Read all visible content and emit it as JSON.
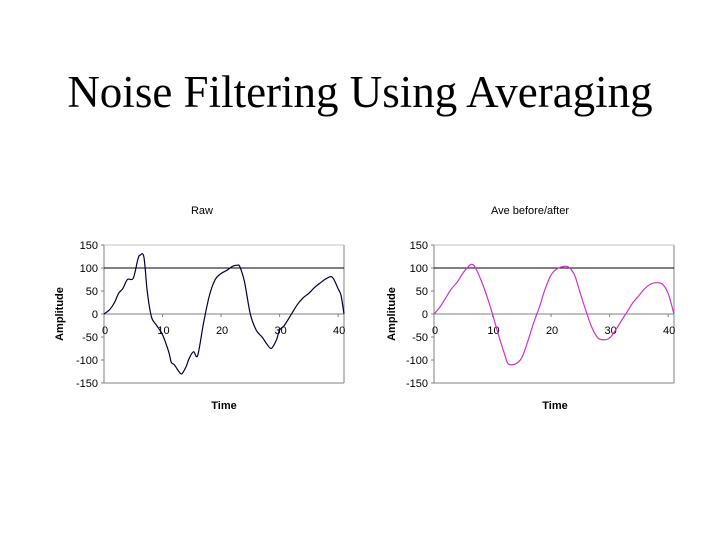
{
  "slide": {
    "title": "Noise Filtering Using Averaging"
  },
  "chart_data": [
    {
      "type": "line",
      "title": "Raw",
      "xlabel": "Time",
      "ylabel": "Amplitude",
      "ylim": [
        -150,
        150
      ],
      "yticks": [
        "150",
        "100",
        "50",
        "0",
        "-50",
        "-100",
        "-150"
      ],
      "xlim": [
        0,
        41
      ],
      "xticks": [
        "0",
        "10",
        "20",
        "30",
        "40"
      ],
      "reference_line": 100,
      "grid": false,
      "color": "#000033",
      "series": [
        {
          "name": "Raw",
          "x": [
            0,
            1,
            1.8,
            2.5,
            3.2,
            4,
            5,
            5.8,
            6.2,
            6.8,
            7.3,
            7.7,
            8.2,
            9,
            10,
            11,
            11.5,
            12,
            12.8,
            13.3,
            14,
            14.6,
            15.3,
            16,
            17,
            18,
            19,
            20,
            21,
            22,
            22.8,
            23.2,
            24,
            25,
            26,
            27,
            27.8,
            28.5,
            29,
            29.5,
            30,
            30.8,
            31.8,
            33,
            34,
            35,
            36,
            37,
            38,
            39,
            40,
            40.5,
            41
          ],
          "y": [
            0,
            10,
            25,
            45,
            55,
            75,
            78,
            120,
            128,
            125,
            60,
            20,
            -10,
            -25,
            -45,
            -80,
            -105,
            -110,
            -125,
            -130,
            -115,
            -95,
            -82,
            -90,
            -20,
            40,
            75,
            88,
            95,
            104,
            106,
            103,
            70,
            0,
            -35,
            -50,
            -65,
            -75,
            -68,
            -55,
            -35,
            -25,
            -5,
            20,
            35,
            45,
            58,
            68,
            77,
            80,
            55,
            40,
            0
          ]
        }
      ]
    },
    {
      "type": "line",
      "title": "Ave before/after",
      "xlabel": "Time",
      "ylabel": "Amplitude",
      "ylim": [
        -150,
        150
      ],
      "yticks": [
        "150",
        "100",
        "50",
        "0",
        "-50",
        "-100",
        "-150"
      ],
      "xlim": [
        0,
        41
      ],
      "xticks": [
        "0",
        "10",
        "20",
        "30",
        "40"
      ],
      "reference_line": 100,
      "grid": false,
      "color": "#cc33cc",
      "series": [
        {
          "name": "Ave before/after",
          "x": [
            0,
            1,
            2,
            3,
            4,
            5,
            6,
            6.5,
            7,
            8,
            9,
            10,
            11,
            12,
            12.5,
            13,
            14,
            15,
            16,
            17,
            18,
            19,
            20,
            21,
            22,
            23,
            24,
            25,
            26,
            27,
            28,
            29,
            30,
            31,
            32,
            33,
            34,
            35,
            36,
            37,
            38,
            39,
            40,
            41
          ],
          "y": [
            0,
            15,
            35,
            55,
            70,
            90,
            105,
            108,
            102,
            75,
            40,
            0,
            -45,
            -85,
            -105,
            -110,
            -108,
            -95,
            -60,
            -20,
            15,
            55,
            85,
            98,
            103,
            102,
            85,
            45,
            5,
            -30,
            -52,
            -56,
            -52,
            -35,
            -15,
            5,
            25,
            40,
            55,
            65,
            68,
            65,
            45,
            0
          ]
        }
      ]
    }
  ]
}
